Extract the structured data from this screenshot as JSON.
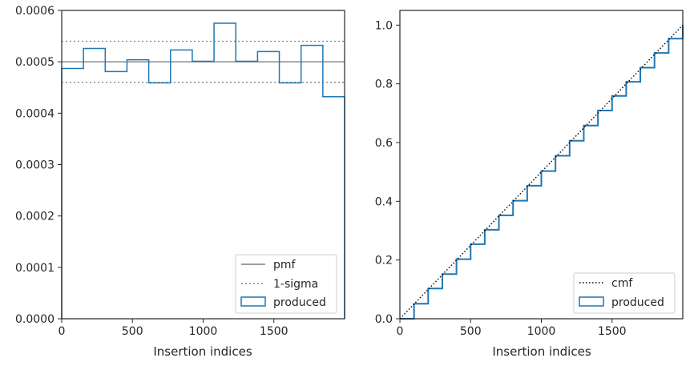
{
  "colors": {
    "hist": "#1f77b4",
    "pmf": "#7f7f7f",
    "sigma": "#7f7f7f",
    "cmf": "#000000",
    "frame": "#262626"
  },
  "chart_data": [
    {
      "type": "histogram-step",
      "title": "",
      "xlabel": "Insertion indices",
      "ylabel": "",
      "xlim": [
        0,
        2000
      ],
      "ylim": [
        0,
        0.0006
      ],
      "xticks": [
        0,
        500,
        1000,
        1500
      ],
      "xtick_labels": [
        "0",
        "500",
        "1000",
        "1500"
      ],
      "yticks": [
        0,
        0.0001,
        0.0002,
        0.0003,
        0.0004,
        0.0005,
        0.0006
      ],
      "ytick_labels": [
        "0.0000",
        "0.0001",
        "0.0002",
        "0.0003",
        "0.0004",
        "0.0005",
        "0.0006"
      ],
      "bin_edges": [
        0,
        153.8,
        307.7,
        461.5,
        615.4,
        769.2,
        923.1,
        1076.9,
        1230.8,
        1384.6,
        1538.5,
        1692.3,
        1846.2,
        2000
      ],
      "values": [
        0.000487,
        0.000526,
        0.000481,
        0.000504,
        0.000459,
        0.000523,
        0.000501,
        0.000575,
        0.000501,
        0.00052,
        0.000459,
        0.000532,
        0.000432
      ],
      "pmf": 0.0005,
      "sigma_band": [
        0.00046,
        0.00054
      ],
      "legend_position": "lower right",
      "legend": [
        {
          "label": "pmf",
          "style": "solid"
        },
        {
          "label": "1-sigma",
          "style": "dotted"
        },
        {
          "label": "produced",
          "style": "patch"
        }
      ]
    },
    {
      "type": "line",
      "title": "",
      "xlabel": "Insertion indices",
      "ylabel": "",
      "xlim": [
        0,
        2000
      ],
      "ylim": [
        0,
        1.05
      ],
      "xticks": [
        0,
        500,
        1000,
        1500
      ],
      "xtick_labels": [
        "0",
        "500",
        "1000",
        "1500"
      ],
      "yticks": [
        0,
        0.2,
        0.4,
        0.6,
        0.8,
        1.0
      ],
      "ytick_labels": [
        "0.0",
        "0.2",
        "0.4",
        "0.6",
        "0.8",
        "1.0"
      ],
      "series": [
        {
          "style": "dotted",
          "x": [
            0,
            2000
          ],
          "y": [
            0,
            1.0
          ]
        },
        {
          "style": "step",
          "x": [
            0,
            100,
            200,
            300,
            400,
            500,
            600,
            700,
            800,
            900,
            1000,
            1100,
            1200,
            1300,
            1400,
            1500,
            1600,
            1700,
            1800,
            1900,
            2000
          ],
          "y": [
            0,
            0.051,
            0.103,
            0.152,
            0.203,
            0.254,
            0.303,
            0.352,
            0.402,
            0.453,
            0.503,
            0.555,
            0.606,
            0.658,
            0.709,
            0.759,
            0.807,
            0.855,
            0.905,
            0.954,
            1.0
          ]
        }
      ],
      "legend_position": "lower right",
      "legend": [
        {
          "label": "cmf",
          "style": "dotted"
        },
        {
          "label": "produced",
          "style": "patch"
        }
      ]
    }
  ]
}
